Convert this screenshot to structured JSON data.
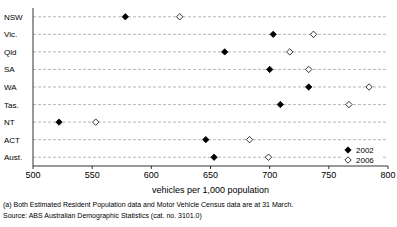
{
  "chart_data": {
    "type": "scatter",
    "orientation": "horizontal",
    "x_label": "vehicles per 1,000 population",
    "categories": [
      "NSW",
      "Vic.",
      "Qld",
      "SA",
      "WA",
      "Tas.",
      "NT",
      "ACT",
      "Aust."
    ],
    "series": [
      {
        "name": "2002",
        "color": "#000000",
        "marker": "diamond",
        "values": [
          578,
          703,
          662,
          700,
          733,
          709,
          522,
          646,
          653
        ]
      },
      {
        "name": "2006",
        "color": "#000000",
        "marker": "diamond_open",
        "values": [
          624,
          737,
          717,
          733,
          784,
          767,
          553,
          683,
          699
        ]
      }
    ],
    "xlim": [
      500,
      800
    ],
    "xticks": [
      500,
      550,
      600,
      650,
      700,
      750,
      800
    ],
    "grid": true,
    "legend": "lower right",
    "annotations": [
      "(a) Both Estimated Resident Population data and Motor Vehicle Census data are at 31 March.",
      "Source: ABS Australian Demographic Statistics (cat. no. 3101.0)"
    ]
  }
}
